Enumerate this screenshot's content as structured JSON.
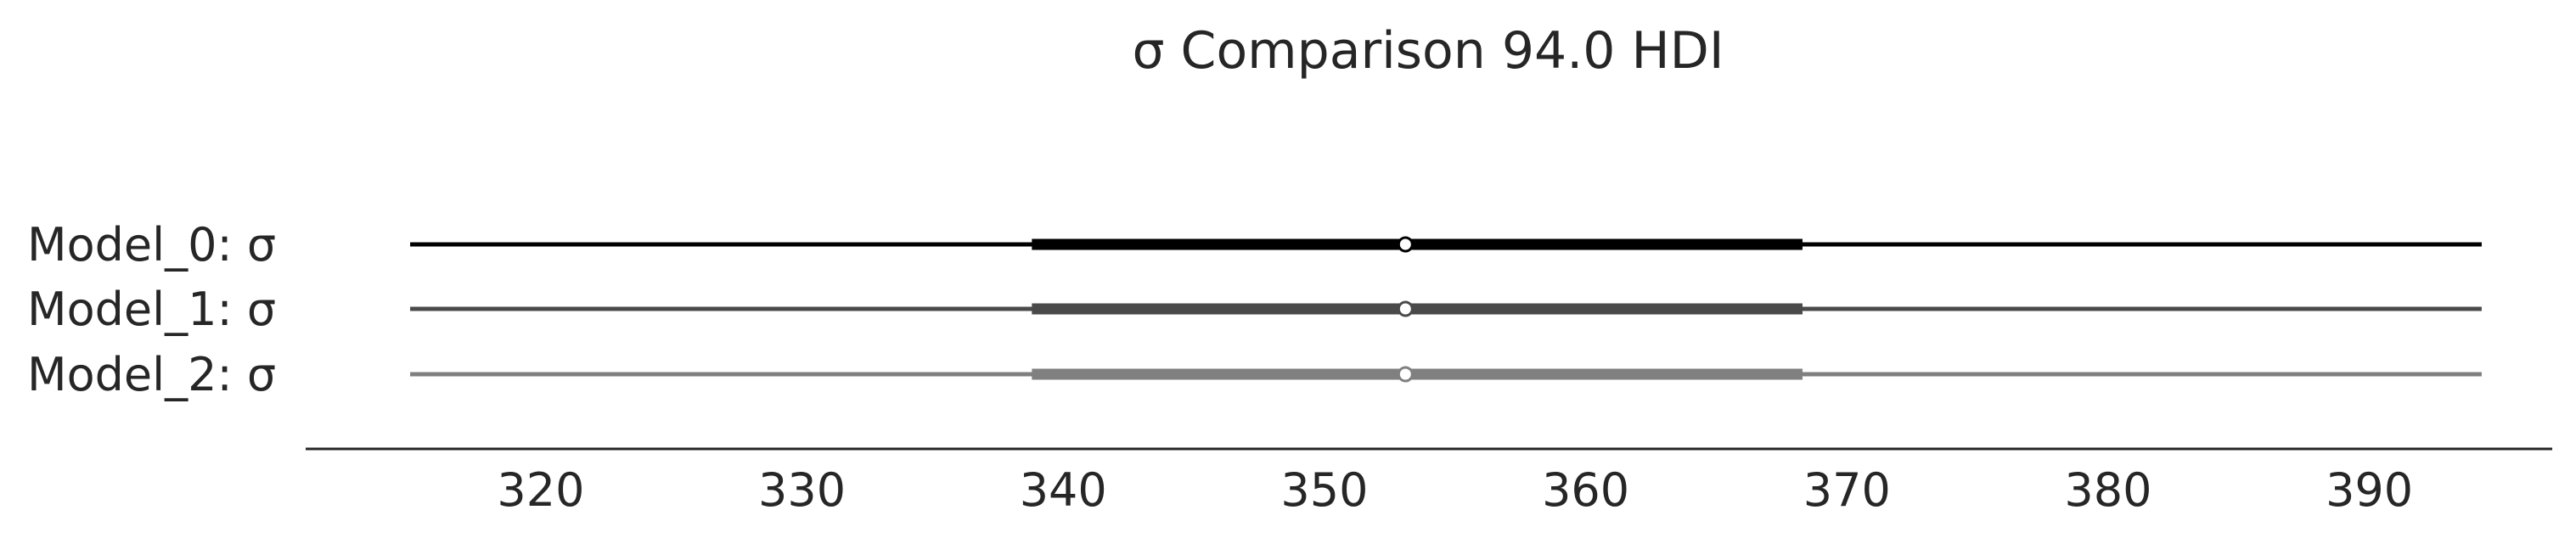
{
  "chart_data": {
    "type": "forest",
    "title": "σ Comparison 94.0 HDI",
    "xlabel": "",
    "ylabel": "",
    "xlim": [
      311,
      397
    ],
    "xticks": [
      320,
      330,
      340,
      350,
      360,
      370,
      380,
      390
    ],
    "tick_labels": [
      "320",
      "330",
      "340",
      "350",
      "360",
      "370",
      "380",
      "390"
    ],
    "grid": false,
    "series": [
      {
        "name": "Model_0: σ",
        "label": "Model_0: σ",
        "color": "#000000",
        "hdi_94": [
          315.0,
          394.3
        ],
        "interquartile": [
          338.8,
          368.3
        ],
        "point_estimate": 353.1
      },
      {
        "name": "Model_1: σ",
        "label": "Model_1: σ",
        "color": "#4a4a4a",
        "hdi_94": [
          315.0,
          394.3
        ],
        "interquartile": [
          338.8,
          368.3
        ],
        "point_estimate": 353.1
      },
      {
        "name": "Model_2: σ",
        "label": "Model_2: σ",
        "color": "#808080",
        "hdi_94": [
          315.0,
          394.3
        ],
        "interquartile": [
          338.8,
          368.3
        ],
        "point_estimate": 353.1
      }
    ]
  }
}
